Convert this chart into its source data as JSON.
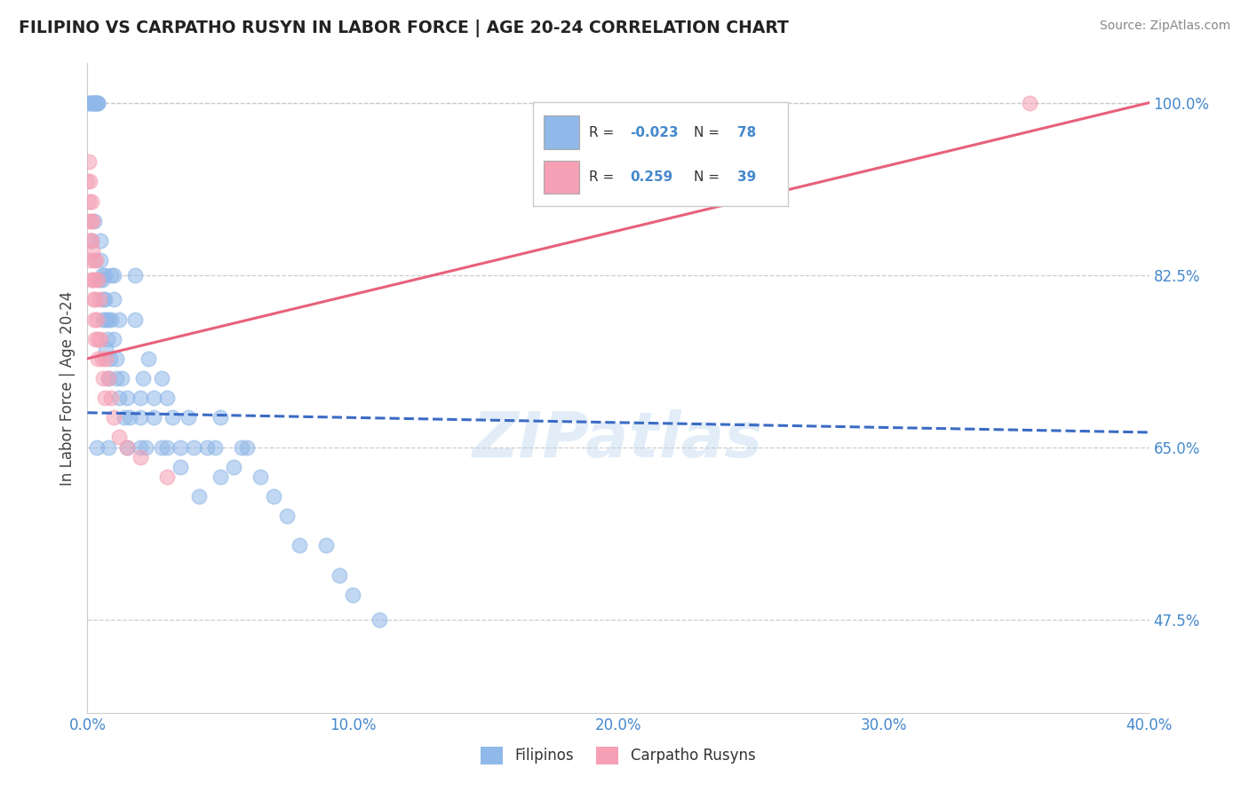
{
  "title": "FILIPINO VS CARPATHO RUSYN IN LABOR FORCE | AGE 20-24 CORRELATION CHART",
  "source": "Source: ZipAtlas.com",
  "ylabel": "In Labor Force | Age 20-24",
  "xlim": [
    0.0,
    40.0
  ],
  "ylim": [
    38.0,
    104.0
  ],
  "yticks": [
    47.5,
    65.0,
    82.5,
    100.0
  ],
  "xticks": [
    0.0,
    10.0,
    20.0,
    30.0,
    40.0
  ],
  "filipino_color": "#90B8E8",
  "rusyn_color": "#F5A0B5",
  "filipino_line_color": "#3B6BC4",
  "rusyn_line_color": "#E8607A",
  "watermark": "ZIPatlas",
  "legend_label_filipino": "Filipinos",
  "legend_label_rusyn": "Carpatho Rusyns",
  "fil_R": "-0.023",
  "fil_N": "78",
  "rus_R": "0.259",
  "rus_N": "39",
  "filipino_x": [
    0.1,
    0.1,
    0.2,
    0.2,
    0.25,
    0.3,
    0.3,
    0.35,
    0.4,
    0.4,
    0.5,
    0.5,
    0.55,
    0.6,
    0.6,
    0.65,
    0.7,
    0.7,
    0.75,
    0.8,
    0.8,
    0.85,
    0.9,
    0.9,
    1.0,
    1.0,
    1.0,
    1.1,
    1.1,
    1.2,
    1.2,
    1.3,
    1.4,
    1.5,
    1.5,
    1.6,
    1.8,
    1.8,
    2.0,
    2.0,
    2.1,
    2.2,
    2.3,
    2.5,
    2.5,
    2.8,
    2.8,
    3.0,
    3.2,
    3.5,
    3.5,
    3.8,
    4.0,
    4.2,
    4.5,
    5.0,
    5.0,
    5.5,
    6.0,
    6.5,
    7.0,
    7.5,
    8.0,
    0.15,
    0.25,
    0.45,
    0.55,
    0.65,
    9.0,
    9.5,
    10.0,
    11.0,
    0.35,
    0.8,
    2.0,
    3.0,
    4.8,
    5.8
  ],
  "filipino_y": [
    100.0,
    100.0,
    100.0,
    100.0,
    100.0,
    100.0,
    100.0,
    100.0,
    100.0,
    100.0,
    86.0,
    84.0,
    82.5,
    80.0,
    78.0,
    82.5,
    78.0,
    75.0,
    76.0,
    78.0,
    72.0,
    74.0,
    82.5,
    78.0,
    82.5,
    80.0,
    76.0,
    74.0,
    72.0,
    78.0,
    70.0,
    72.0,
    68.0,
    70.0,
    65.0,
    68.0,
    82.5,
    78.0,
    70.0,
    68.0,
    72.0,
    65.0,
    74.0,
    70.0,
    68.0,
    65.0,
    72.0,
    70.0,
    68.0,
    65.0,
    63.0,
    68.0,
    65.0,
    60.0,
    65.0,
    68.0,
    62.0,
    63.0,
    65.0,
    62.0,
    60.0,
    58.0,
    55.0,
    86.0,
    88.0,
    82.0,
    82.0,
    80.0,
    55.0,
    52.0,
    50.0,
    47.5,
    65.0,
    65.0,
    65.0,
    65.0,
    65.0,
    65.0
  ],
  "rusyn_x": [
    0.0,
    0.0,
    0.05,
    0.05,
    0.08,
    0.1,
    0.1,
    0.12,
    0.15,
    0.15,
    0.15,
    0.18,
    0.2,
    0.2,
    0.22,
    0.25,
    0.25,
    0.28,
    0.3,
    0.3,
    0.32,
    0.35,
    0.38,
    0.4,
    0.4,
    0.45,
    0.5,
    0.55,
    0.6,
    0.65,
    0.7,
    0.8,
    0.9,
    1.0,
    1.2,
    1.5,
    2.0,
    3.0,
    35.5
  ],
  "rusyn_y": [
    92.0,
    88.0,
    94.0,
    90.0,
    86.0,
    84.0,
    92.0,
    88.0,
    86.0,
    82.0,
    90.0,
    85.0,
    82.0,
    88.0,
    80.0,
    84.0,
    78.0,
    82.0,
    80.0,
    76.0,
    84.0,
    78.0,
    76.0,
    82.0,
    74.0,
    80.0,
    76.0,
    74.0,
    72.0,
    70.0,
    74.0,
    72.0,
    70.0,
    68.0,
    66.0,
    65.0,
    64.0,
    62.0,
    100.0
  ],
  "fil_line_x": [
    0.0,
    40.0
  ],
  "fil_line_y": [
    68.5,
    66.5
  ],
  "rus_line_x": [
    0.0,
    40.0
  ],
  "rus_line_y": [
    74.0,
    100.0
  ]
}
